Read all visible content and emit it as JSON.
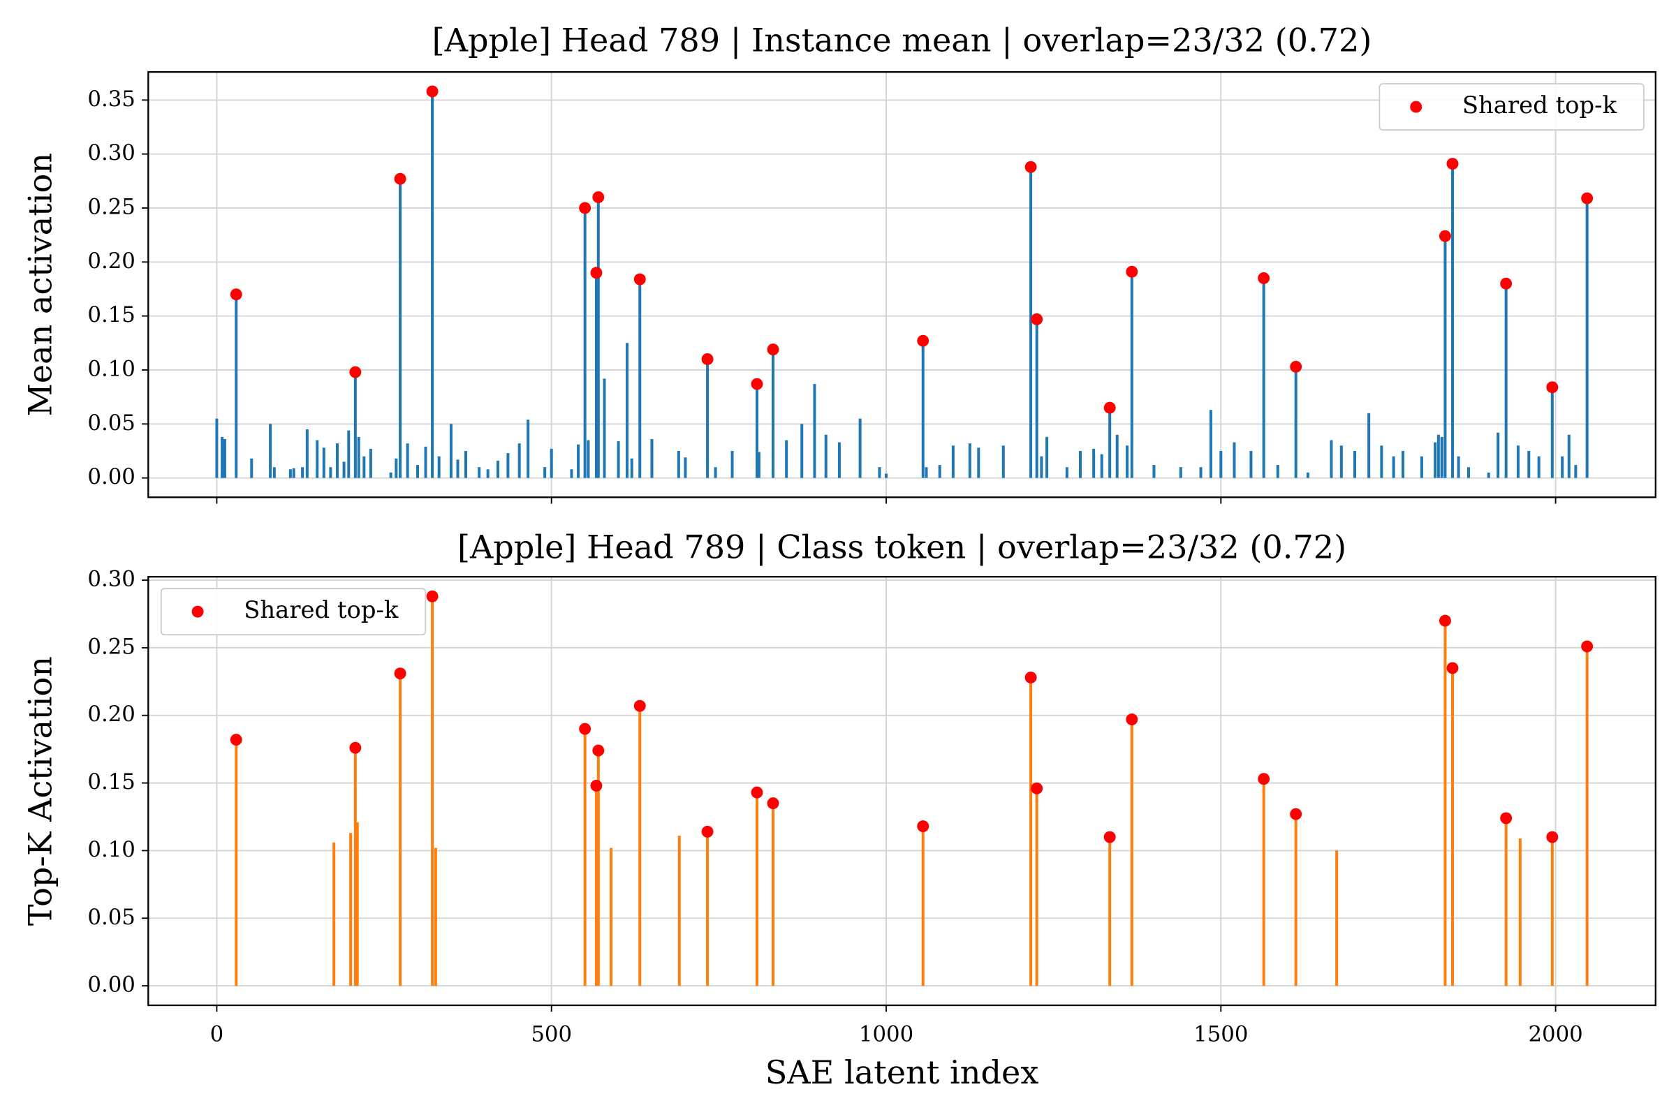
{
  "chart_data": [
    {
      "type": "bar",
      "title": "[Apple] Head 789 | Instance mean | overlap=23/32 (0.72)",
      "ylabel": "Mean activation",
      "xlim": [
        -102.35,
        2149.35
      ],
      "xticks": [
        0,
        500,
        1000,
        1500,
        2000
      ],
      "xtick_labels": false,
      "ylim": [
        -0.0179,
        0.376
      ],
      "yticks": [
        {
          "value": 0,
          "label": "0.00"
        },
        0.05,
        {
          "value": 0.1,
          "label": "0.10"
        },
        0.15,
        {
          "value": 0.2,
          "label": "0.20"
        },
        0.25,
        {
          "value": 0.3,
          "label": "0.30"
        },
        0.35
      ],
      "grid": true,
      "legend": "upper right",
      "bars": {
        "color": "#1f77b4",
        "x": [
          0,
          8,
          12,
          29,
          52,
          80,
          86,
          110,
          115,
          128,
          135,
          150,
          160,
          170,
          180,
          190,
          197,
          207,
          212,
          220,
          230,
          260,
          268,
          274,
          285,
          300,
          312,
          322,
          332,
          350,
          360,
          372,
          392,
          405,
          420,
          435,
          452,
          465,
          490,
          500,
          530,
          540,
          550,
          555,
          567,
          570,
          579,
          600,
          613,
          620,
          632,
          650,
          690,
          700,
          733,
          745,
          770,
          807,
          810,
          831,
          851,
          874,
          893,
          910,
          930,
          961,
          990,
          1000,
          1055,
          1060,
          1080,
          1100,
          1125,
          1138,
          1175,
          1216,
          1225,
          1232,
          1240,
          1270,
          1290,
          1310,
          1322,
          1334,
          1345,
          1360,
          1367,
          1400,
          1440,
          1470,
          1485,
          1500,
          1520,
          1545,
          1564,
          1585,
          1612,
          1630,
          1665,
          1680,
          1700,
          1721,
          1740,
          1758,
          1772,
          1800,
          1820,
          1825,
          1830,
          1835,
          1846,
          1855,
          1870,
          1900,
          1914,
          1926,
          1944,
          1960,
          1975,
          1995,
          2010,
          2020,
          2030,
          2047
        ],
        "values": [
          0.055,
          0.038,
          0.036,
          0.17,
          0.018,
          0.05,
          0.01,
          0.008,
          0.009,
          0.01,
          0.045,
          0.035,
          0.028,
          0.01,
          0.032,
          0.015,
          0.044,
          0.098,
          0.038,
          0.02,
          0.027,
          0.005,
          0.018,
          0.277,
          0.032,
          0.012,
          0.029,
          0.358,
          0.02,
          0.05,
          0.017,
          0.025,
          0.01,
          0.008,
          0.016,
          0.023,
          0.032,
          0.054,
          0.01,
          0.027,
          0.008,
          0.031,
          0.25,
          0.035,
          0.19,
          0.26,
          0.092,
          0.034,
          0.125,
          0.018,
          0.184,
          0.036,
          0.025,
          0.019,
          0.11,
          0.01,
          0.025,
          0.087,
          0.024,
          0.119,
          0.035,
          0.05,
          0.087,
          0.04,
          0.033,
          0.055,
          0.01,
          0.004,
          0.127,
          0.01,
          0.012,
          0.03,
          0.032,
          0.028,
          0.03,
          0.288,
          0.147,
          0.02,
          0.038,
          0.01,
          0.025,
          0.027,
          0.022,
          0.065,
          0.04,
          0.03,
          0.191,
          0.012,
          0.01,
          0.01,
          0.063,
          0.025,
          0.033,
          0.025,
          0.185,
          0.012,
          0.103,
          0.005,
          0.035,
          0.03,
          0.025,
          0.06,
          0.03,
          0.02,
          0.025,
          0.02,
          0.033,
          0.04,
          0.038,
          0.224,
          0.291,
          0.02,
          0.01,
          0.005,
          0.042,
          0.18,
          0.03,
          0.025,
          0.02,
          0.084,
          0.02,
          0.04,
          0.012,
          0.259
        ]
      },
      "markers": {
        "name": "Shared top-k",
        "color": "#ff0000",
        "x": [
          29,
          207,
          274,
          322,
          550,
          567,
          570,
          632,
          733,
          807,
          831,
          1055,
          1216,
          1225,
          1334,
          1367,
          1564,
          1612,
          1835,
          1846,
          1926,
          1995,
          2047
        ],
        "values": [
          0.17,
          0.098,
          0.277,
          0.358,
          0.25,
          0.19,
          0.26,
          0.184,
          0.11,
          0.087,
          0.119,
          0.127,
          0.288,
          0.147,
          0.065,
          0.191,
          0.185,
          0.103,
          0.224,
          0.291,
          0.18,
          0.084,
          0.259
        ]
      }
    },
    {
      "type": "bar",
      "title": "[Apple] Head 789 | Class token | overlap=23/32 (0.72)",
      "ylabel": "Top-K Activation",
      "xlabel": "SAE latent index",
      "xlim": [
        -102.35,
        2149.35
      ],
      "xticks": [
        0,
        500,
        1000,
        1500,
        2000
      ],
      "xtick_labels": true,
      "ylim": [
        -0.0144,
        0.3025
      ],
      "yticks": [
        {
          "value": 0,
          "label": "0.00"
        },
        0.05,
        {
          "value": 0.1,
          "label": "0.10"
        },
        0.15,
        {
          "value": 0.2,
          "label": "0.20"
        },
        0.25,
        {
          "value": 0.3,
          "label": "0.30"
        }
      ],
      "grid": true,
      "legend": "upper left",
      "bars": {
        "color": "#ff7f0e",
        "x": [
          29,
          175,
          200,
          207,
          210,
          274,
          322,
          327,
          550,
          567,
          570,
          589,
          632,
          691,
          733,
          807,
          831,
          1055,
          1216,
          1225,
          1334,
          1367,
          1564,
          1612,
          1673,
          1835,
          1846,
          1926,
          1947,
          1995,
          2047
        ],
        "values": [
          0.182,
          0.106,
          0.113,
          0.176,
          0.121,
          0.231,
          0.288,
          0.102,
          0.19,
          0.148,
          0.174,
          0.102,
          0.207,
          0.111,
          0.114,
          0.143,
          0.135,
          0.118,
          0.228,
          0.146,
          0.11,
          0.197,
          0.153,
          0.127,
          0.1,
          0.27,
          0.235,
          0.124,
          0.109,
          0.11,
          0.251
        ]
      },
      "markers": {
        "name": "Shared top-k",
        "color": "#ff0000",
        "x": [
          29,
          207,
          274,
          322,
          550,
          567,
          570,
          632,
          733,
          807,
          831,
          1055,
          1216,
          1225,
          1334,
          1367,
          1564,
          1612,
          1835,
          1846,
          1926,
          1995,
          2047
        ],
        "values": [
          0.182,
          0.176,
          0.231,
          0.288,
          0.19,
          0.148,
          0.174,
          0.207,
          0.114,
          0.143,
          0.135,
          0.118,
          0.228,
          0.146,
          0.11,
          0.197,
          0.153,
          0.127,
          0.27,
          0.235,
          0.124,
          0.11,
          0.251
        ]
      }
    }
  ]
}
